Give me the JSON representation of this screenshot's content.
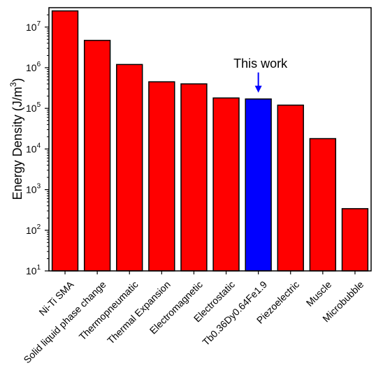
{
  "chart_data": {
    "type": "bar",
    "title": "",
    "xlabel": "",
    "ylabel": "Energy Density (J/m³)",
    "yscale": "log",
    "ylim": [
      10,
      30000000
    ],
    "yticks": [
      {
        "value": 10,
        "base": "10",
        "exp": "1"
      },
      {
        "value": 100,
        "base": "10",
        "exp": "2"
      },
      {
        "value": 1000,
        "base": "10",
        "exp": "3"
      },
      {
        "value": 10000,
        "base": "10",
        "exp": "4"
      },
      {
        "value": 100000,
        "base": "10",
        "exp": "5"
      },
      {
        "value": 1000000,
        "base": "10",
        "exp": "6"
      },
      {
        "value": 10000000,
        "base": "10",
        "exp": "7"
      }
    ],
    "categories": [
      "Ni-Ti SMA",
      "Solid liquid phase change",
      "Thermopneumatic",
      "Thermal Expansion",
      "Electromagnetic",
      "Electrostatic",
      "Tb0.36Dy0.64Fe1.9",
      "Piezoelectric",
      "Muscle",
      "Microbubble"
    ],
    "values": [
      25000000,
      4700000,
      1200000,
      450000,
      400000,
      180000,
      170000,
      120000,
      18000,
      340
    ],
    "bar_colors": [
      "#ff0000",
      "#ff0000",
      "#ff0000",
      "#ff0000",
      "#ff0000",
      "#ff0000",
      "#0000ff",
      "#ff0000",
      "#ff0000",
      "#ff0000"
    ],
    "annotation": {
      "text": "This work",
      "target_index": 6,
      "arrow_color": "#0000ff"
    },
    "grid": false
  }
}
